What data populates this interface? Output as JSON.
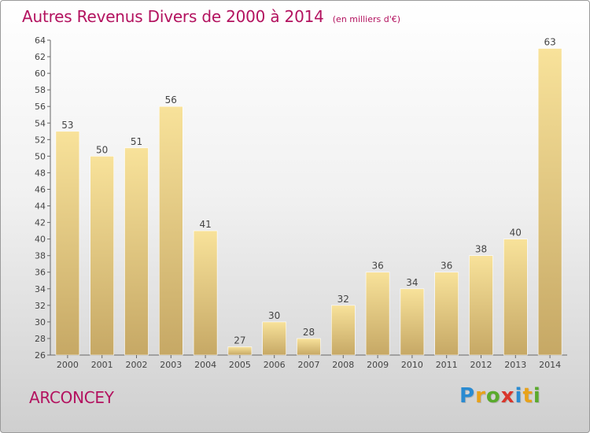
{
  "header": {
    "title": "Autres Revenus Divers de 2000 à 2014",
    "subtitle": "(en milliers d'€)"
  },
  "footer": {
    "commune": "ARCONCEY",
    "brand": "Proxiti",
    "brand_letters": [
      {
        "char": "P",
        "color": "#2a8bd1"
      },
      {
        "char": "r",
        "color": "#e8a21a"
      },
      {
        "char": "o",
        "color": "#5aaa2d"
      },
      {
        "char": "x",
        "color": "#d9362b"
      },
      {
        "char": "i",
        "color": "#2a8bd1"
      },
      {
        "char": "t",
        "color": "#e8a21a"
      },
      {
        "char": "i",
        "color": "#5aaa2d"
      }
    ]
  },
  "colors": {
    "title": "#b3125f",
    "bar_light": "#f8e29a",
    "bar_dark": "#c6a865",
    "axis": "#666666"
  },
  "chart_data": {
    "type": "bar",
    "categories": [
      "2000",
      "2001",
      "2002",
      "2003",
      "2004",
      "2005",
      "2006",
      "2007",
      "2008",
      "2009",
      "2010",
      "2011",
      "2012",
      "2013",
      "2014"
    ],
    "values": [
      53,
      50,
      51,
      56,
      41,
      27,
      30,
      28,
      32,
      36,
      34,
      36,
      38,
      40,
      63
    ],
    "title": "Autres Revenus Divers de 2000 à 2014",
    "ylim": [
      26,
      64
    ],
    "yticks": [
      26,
      28,
      30,
      32,
      34,
      36,
      38,
      40,
      42,
      44,
      46,
      48,
      50,
      52,
      54,
      56,
      58,
      60,
      62,
      64
    ],
    "grid": false,
    "legend": "none"
  }
}
